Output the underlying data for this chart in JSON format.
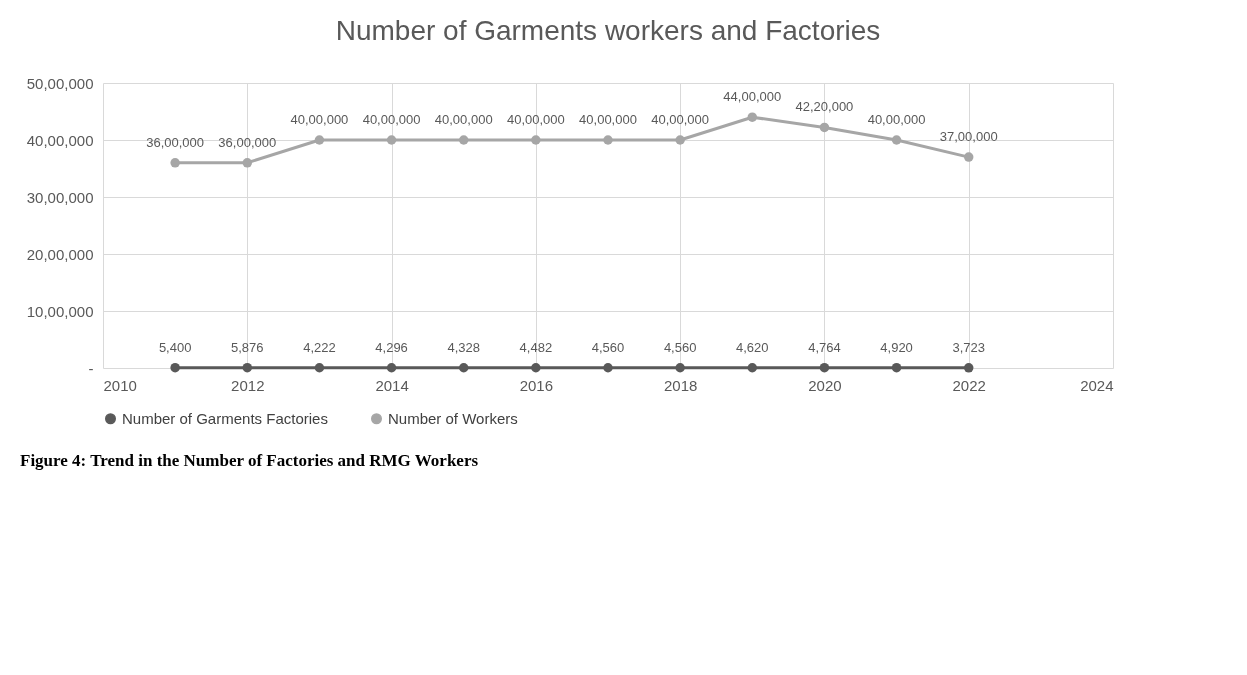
{
  "chart_data": {
    "type": "line",
    "title": "Number of Garments workers and Factories",
    "x": [
      2011,
      2012,
      2013,
      2014,
      2015,
      2016,
      2017,
      2018,
      2019,
      2020,
      2021,
      2022
    ],
    "series": [
      {
        "name": "Number of Garments Factories",
        "color": "#595959",
        "values": [
          5400,
          5876,
          4222,
          4296,
          4328,
          4482,
          4560,
          4560,
          4620,
          4764,
          4920,
          3723
        ],
        "value_labels": [
          "5,400",
          "5,876",
          "4,222",
          "4,296",
          "4,328",
          "4,482",
          "4,560",
          "4,560",
          "4,620",
          "4,764",
          "4,920",
          "3,723"
        ]
      },
      {
        "name": "Number of Workers",
        "color": "#a6a6a6",
        "values": [
          3600000,
          3600000,
          4000000,
          4000000,
          4000000,
          4000000,
          4000000,
          4000000,
          4400000,
          4220000,
          4000000,
          3700000
        ],
        "value_labels": [
          "36,00,000",
          "36,00,000",
          "40,00,000",
          "40,00,000",
          "40,00,000",
          "40,00,000",
          "40,00,000",
          "40,00,000",
          "44,00,000",
          "42,20,000",
          "40,00,000",
          "37,00,000"
        ]
      }
    ],
    "xlim": [
      2010,
      2024
    ],
    "xticks": [
      2010,
      2012,
      2014,
      2016,
      2018,
      2020,
      2022,
      2024
    ],
    "ylim": [
      0,
      5000000
    ],
    "yticks": [
      {
        "value": 0,
        "label": "-"
      },
      {
        "value": 1000000,
        "label": "10,00,000"
      },
      {
        "value": 2000000,
        "label": "20,00,000"
      },
      {
        "value": 3000000,
        "label": "30,00,000"
      },
      {
        "value": 4000000,
        "label": "40,00,000"
      },
      {
        "value": 5000000,
        "label": "50,00,000"
      }
    ],
    "grid": true,
    "legend": "bottom",
    "marker": "circle",
    "line_style": "solid",
    "annotations": [
      "Figure 4: Trend in the Number of Factories and RMG Workers"
    ]
  }
}
